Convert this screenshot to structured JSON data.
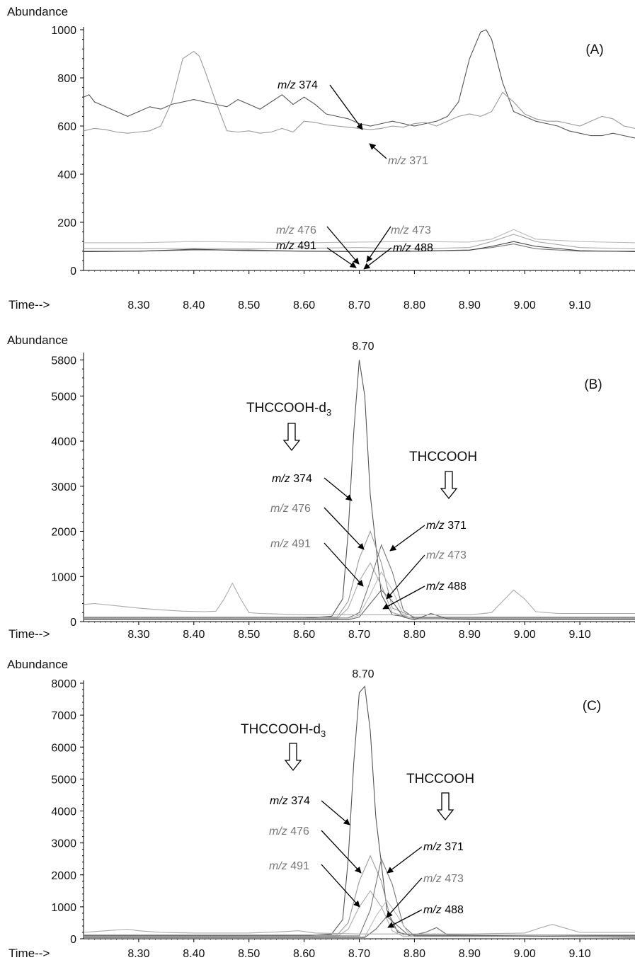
{
  "chart_data": [
    {
      "type": "line",
      "panel": "(A)",
      "ylabel": "Abundance",
      "xlabel": "Time-->",
      "xlim": [
        8.2,
        9.2
      ],
      "ylim": [
        0,
        1000
      ],
      "yticks": [
        0,
        200,
        400,
        600,
        800,
        1000
      ],
      "xticks": [
        8.3,
        8.4,
        8.5,
        8.6,
        8.7,
        8.8,
        8.9,
        9.0,
        9.1
      ],
      "peak_label": "",
      "series": [
        {
          "name": "m/z 374",
          "color": "#555555",
          "x": [
            8.2,
            8.21,
            8.22,
            8.24,
            8.26,
            8.28,
            8.3,
            8.32,
            8.34,
            8.36,
            8.38,
            8.4,
            8.42,
            8.44,
            8.46,
            8.48,
            8.5,
            8.52,
            8.54,
            8.56,
            8.58,
            8.6,
            8.62,
            8.64,
            8.66,
            8.68,
            8.7,
            8.72,
            8.74,
            8.76,
            8.78,
            8.8,
            8.82,
            8.84,
            8.86,
            8.88,
            8.9,
            8.92,
            8.93,
            8.94,
            8.96,
            8.98,
            9.0,
            9.02,
            9.04,
            9.06,
            9.08,
            9.1,
            9.12,
            9.14,
            9.16,
            9.18,
            9.2
          ],
          "y": [
            720,
            730,
            700,
            680,
            660,
            640,
            660,
            680,
            670,
            690,
            700,
            710,
            700,
            690,
            680,
            710,
            690,
            670,
            700,
            730,
            690,
            720,
            690,
            650,
            640,
            630,
            610,
            600,
            610,
            620,
            610,
            600,
            610,
            620,
            640,
            700,
            880,
            990,
            1000,
            960,
            780,
            660,
            640,
            620,
            610,
            600,
            580,
            570,
            560,
            560,
            570,
            560,
            550
          ]
        },
        {
          "name": "m/z 371",
          "color": "#999999",
          "x": [
            8.2,
            8.22,
            8.24,
            8.26,
            8.28,
            8.3,
            8.32,
            8.34,
            8.36,
            8.38,
            8.4,
            8.41,
            8.42,
            8.44,
            8.46,
            8.48,
            8.5,
            8.52,
            8.54,
            8.56,
            8.58,
            8.6,
            8.62,
            8.64,
            8.66,
            8.68,
            8.7,
            8.72,
            8.74,
            8.76,
            8.78,
            8.8,
            8.82,
            8.84,
            8.86,
            8.88,
            8.9,
            8.92,
            8.94,
            8.96,
            8.98,
            9.0,
            9.02,
            9.04,
            9.06,
            9.08,
            9.1,
            9.12,
            9.14,
            9.16,
            9.18,
            9.2
          ],
          "y": [
            580,
            590,
            585,
            575,
            570,
            575,
            580,
            600,
            700,
            880,
            910,
            890,
            830,
            700,
            580,
            575,
            580,
            570,
            575,
            590,
            575,
            620,
            615,
            605,
            600,
            595,
            590,
            585,
            590,
            600,
            595,
            610,
            615,
            600,
            620,
            640,
            650,
            640,
            660,
            740,
            700,
            650,
            630,
            620,
            620,
            610,
            600,
            620,
            640,
            630,
            600,
            590
          ]
        },
        {
          "name": "m/z 476",
          "color": "#777777",
          "x": [
            8.2,
            8.3,
            8.4,
            8.5,
            8.6,
            8.7,
            8.8,
            8.9,
            8.94,
            8.98,
            9.02,
            9.1,
            9.2
          ],
          "y": [
            80,
            80,
            85,
            85,
            80,
            80,
            80,
            85,
            95,
            110,
            90,
            80,
            80
          ]
        },
        {
          "name": "m/z 491",
          "color": "#bbbbbb",
          "x": [
            8.2,
            8.3,
            8.4,
            8.5,
            8.6,
            8.7,
            8.8,
            8.9,
            8.94,
            8.98,
            9.02,
            9.1,
            9.2
          ],
          "y": [
            115,
            115,
            120,
            118,
            115,
            118,
            120,
            118,
            130,
            170,
            130,
            120,
            115
          ]
        },
        {
          "name": "m/z 473",
          "color": "#444444",
          "x": [
            8.2,
            8.3,
            8.4,
            8.5,
            8.6,
            8.7,
            8.8,
            8.9,
            8.94,
            8.98,
            9.02,
            9.1,
            9.2
          ],
          "y": [
            78,
            80,
            88,
            82,
            80,
            78,
            80,
            84,
            100,
            120,
            100,
            82,
            78
          ]
        },
        {
          "name": "m/z 488",
          "color": "#aaaaaa",
          "x": [
            8.2,
            8.3,
            8.4,
            8.5,
            8.6,
            8.7,
            8.8,
            8.9,
            8.94,
            8.98,
            9.02,
            9.1,
            9.2
          ],
          "y": [
            90,
            90,
            92,
            90,
            92,
            95,
            90,
            95,
            120,
            150,
            120,
            95,
            90
          ]
        }
      ]
    },
    {
      "type": "line",
      "panel": "(B)",
      "ylabel": "Abundance",
      "xlabel": "Time-->",
      "xlim": [
        8.2,
        9.2
      ],
      "ylim": [
        0,
        5900
      ],
      "yticks": [
        0,
        1000,
        2000,
        3000,
        4000,
        5000,
        5800
      ],
      "xticks": [
        8.3,
        8.4,
        8.5,
        8.6,
        8.7,
        8.8,
        8.9,
        9.0,
        9.1
      ],
      "peak_label": "8.70",
      "series": [
        {
          "name": "m/z 374",
          "color": "#555555",
          "x": [
            8.2,
            8.6,
            8.65,
            8.67,
            8.68,
            8.69,
            8.7,
            8.71,
            8.72,
            8.74,
            8.76,
            8.8,
            9.2
          ],
          "y": [
            80,
            80,
            120,
            500,
            2000,
            4200,
            5800,
            5000,
            2800,
            600,
            150,
            80,
            80
          ]
        },
        {
          "name": "m/z 476",
          "color": "#999999",
          "x": [
            8.2,
            8.66,
            8.68,
            8.7,
            8.72,
            8.74,
            8.76,
            8.8,
            9.2
          ],
          "y": [
            100,
            100,
            450,
            1400,
            2000,
            1300,
            300,
            100,
            100
          ]
        },
        {
          "name": "m/z 491",
          "color": "#aaaaaa",
          "x": [
            8.2,
            8.66,
            8.68,
            8.7,
            8.72,
            8.74,
            8.76,
            8.8,
            9.2
          ],
          "y": [
            60,
            60,
            300,
            900,
            1300,
            800,
            200,
            60,
            60
          ]
        },
        {
          "name": "m/z 371",
          "color": "#777777",
          "x": [
            8.2,
            8.68,
            8.7,
            8.72,
            8.74,
            8.76,
            8.78,
            8.8,
            9.2
          ],
          "y": [
            80,
            80,
            200,
            900,
            1700,
            1100,
            250,
            80,
            80
          ]
        },
        {
          "name": "m/z 473",
          "color": "#bbbbbb",
          "x": [
            8.2,
            8.68,
            8.7,
            8.72,
            8.74,
            8.76,
            8.78,
            8.8,
            9.2
          ],
          "y": [
            50,
            50,
            150,
            600,
            1100,
            700,
            150,
            50,
            50
          ]
        },
        {
          "name": "m/z 488",
          "color": "#666666",
          "x": [
            8.2,
            8.68,
            8.7,
            8.72,
            8.74,
            8.76,
            8.78,
            8.8,
            8.83,
            8.86,
            8.9,
            9.2
          ],
          "y": [
            40,
            40,
            100,
            400,
            700,
            450,
            100,
            40,
            180,
            60,
            40,
            40
          ]
        },
        {
          "name": "",
          "color": "#aaaaaa",
          "x": [
            8.2,
            8.22,
            8.26,
            8.3,
            8.34,
            8.38,
            8.42,
            8.44,
            8.455,
            8.47,
            8.485,
            8.5,
            8.52,
            8.6,
            8.9,
            8.94,
            8.96,
            8.98,
            9.0,
            9.02,
            9.06,
            9.2
          ],
          "y": [
            380,
            400,
            350,
            300,
            260,
            230,
            220,
            230,
            500,
            850,
            500,
            200,
            180,
            150,
            150,
            200,
            450,
            700,
            500,
            220,
            180,
            180
          ]
        }
      ]
    },
    {
      "type": "line",
      "panel": "(C)",
      "ylabel": "Abundance",
      "xlabel": "Time-->",
      "xlim": [
        8.2,
        9.2
      ],
      "ylim": [
        0,
        8000
      ],
      "yticks": [
        0,
        1000,
        2000,
        3000,
        4000,
        5000,
        6000,
        7000,
        8000
      ],
      "xticks": [
        8.3,
        8.4,
        8.5,
        8.6,
        8.7,
        8.8,
        8.9,
        9.0,
        9.1
      ],
      "peak_label": "8.70",
      "series": [
        {
          "name": "m/z 374",
          "color": "#555555",
          "x": [
            8.2,
            8.6,
            8.65,
            8.67,
            8.68,
            8.69,
            8.7,
            8.71,
            8.72,
            8.73,
            8.75,
            8.77,
            8.8,
            9.2
          ],
          "y": [
            100,
            100,
            150,
            600,
            2500,
            5500,
            7700,
            7900,
            6500,
            3800,
            900,
            200,
            100,
            100
          ]
        },
        {
          "name": "m/z 476",
          "color": "#999999",
          "x": [
            8.2,
            8.66,
            8.68,
            8.7,
            8.72,
            8.74,
            8.76,
            8.78,
            9.2
          ],
          "y": [
            120,
            120,
            500,
            1800,
            2600,
            1800,
            400,
            120,
            120
          ]
        },
        {
          "name": "m/z 491",
          "color": "#aaaaaa",
          "x": [
            8.2,
            8.66,
            8.68,
            8.7,
            8.72,
            8.74,
            8.76,
            8.78,
            9.2
          ],
          "y": [
            70,
            70,
            300,
            1000,
            1500,
            1000,
            250,
            70,
            70
          ]
        },
        {
          "name": "m/z 371",
          "color": "#777777",
          "x": [
            8.2,
            8.7,
            8.72,
            8.74,
            8.76,
            8.78,
            8.8,
            9.2
          ],
          "y": [
            90,
            90,
            900,
            2500,
            1700,
            400,
            90,
            90
          ]
        },
        {
          "name": "m/z 473",
          "color": "#bbbbbb",
          "x": [
            8.2,
            8.71,
            8.73,
            8.75,
            8.77,
            8.79,
            9.2
          ],
          "y": [
            60,
            60,
            700,
            1200,
            700,
            150,
            60
          ]
        },
        {
          "name": "m/z 488",
          "color": "#666666",
          "x": [
            8.2,
            8.71,
            8.73,
            8.75,
            8.77,
            8.79,
            8.82,
            8.84,
            8.86,
            9.2
          ],
          "y": [
            40,
            40,
            300,
            700,
            400,
            100,
            200,
            350,
            120,
            40
          ]
        },
        {
          "name": "",
          "color": "#aaaaaa",
          "x": [
            8.2,
            8.24,
            8.28,
            8.3,
            8.34,
            8.4,
            8.5,
            8.56,
            8.59,
            8.62,
            8.7,
            8.9,
            9.0,
            9.03,
            9.05,
            9.07,
            9.1,
            9.2
          ],
          "y": [
            200,
            250,
            300,
            250,
            200,
            180,
            180,
            220,
            250,
            180,
            150,
            150,
            180,
            350,
            450,
            350,
            200,
            200
          ]
        }
      ]
    }
  ],
  "annotations": {
    "A": {
      "panel_label": "(A)",
      "labels": [
        {
          "prefix": "m/z",
          "num": "374"
        },
        {
          "prefix": "m/z",
          "num": "371"
        },
        {
          "prefix": "m/z",
          "num": "476"
        },
        {
          "prefix": "m/z",
          "num": "491"
        },
        {
          "prefix": "m/z",
          "num": "473"
        },
        {
          "prefix": "m/z",
          "num": "488"
        }
      ]
    },
    "B": {
      "panel_label": "(B)",
      "compound_d3": "THCCOOH-d",
      "compound_d3_sub": "3",
      "compound": "THCCOOH",
      "labels": [
        {
          "prefix": "m/z",
          "num": "374"
        },
        {
          "prefix": "m/z",
          "num": "476"
        },
        {
          "prefix": "m/z",
          "num": "491"
        },
        {
          "prefix": "m/z",
          "num": "371"
        },
        {
          "prefix": "m/z",
          "num": "473"
        },
        {
          "prefix": "m/z",
          "num": "488"
        }
      ]
    },
    "C": {
      "panel_label": "(C)",
      "compound_d3": "THCCOOH-d",
      "compound_d3_sub": "3",
      "compound": "THCCOOH",
      "labels": [
        {
          "prefix": "m/z",
          "num": "374"
        },
        {
          "prefix": "m/z",
          "num": "476"
        },
        {
          "prefix": "m/z",
          "num": "491"
        },
        {
          "prefix": "m/z",
          "num": "371"
        },
        {
          "prefix": "m/z",
          "num": "473"
        },
        {
          "prefix": "m/z",
          "num": "488"
        }
      ]
    }
  }
}
